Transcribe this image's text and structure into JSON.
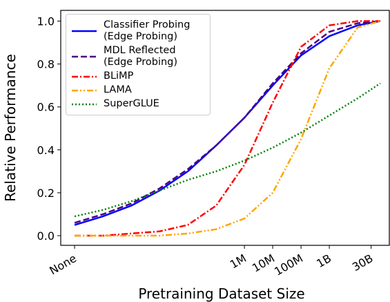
{
  "chart_data": {
    "type": "line",
    "xlabel": "Pretraining Dataset Size",
    "ylabel": "Relative Performance",
    "x": [
      0,
      1,
      2,
      3,
      4,
      5,
      6,
      7,
      8,
      9,
      10,
      10.8
    ],
    "xlim": [
      -0.49,
      11.12
    ],
    "xticks": [
      {
        "value": 0,
        "label": "None"
      },
      {
        "value": 6,
        "label": "1M"
      },
      {
        "value": 7,
        "label": "10M"
      },
      {
        "value": 8,
        "label": "100M"
      },
      {
        "value": 9,
        "label": "1B"
      },
      {
        "value": 10.477,
        "label": "30B"
      }
    ],
    "ylim": [
      -0.045,
      1.05
    ],
    "yticks": [
      {
        "value": 0,
        "label": "0.0"
      },
      {
        "value": 0.2,
        "label": "0.2"
      },
      {
        "value": 0.4,
        "label": "0.4"
      },
      {
        "value": 0.6,
        "label": "0.6"
      },
      {
        "value": 0.8,
        "label": "0.8"
      },
      {
        "value": 1,
        "label": "1.0"
      }
    ],
    "legend": "upper left",
    "series": [
      {
        "name": "Classifier Probing\n(Edge Probing)",
        "color": "#0000ff",
        "linestyle": "solid",
        "values": [
          0.05,
          0.09,
          0.14,
          0.21,
          0.3,
          0.42,
          0.55,
          0.7,
          0.84,
          0.93,
          0.98,
          1.0
        ]
      },
      {
        "name": "MDL Reflected\n(Edge Probing)",
        "color": "#4b0082",
        "linestyle": "dashed",
        "values": [
          0.06,
          0.1,
          0.15,
          0.22,
          0.31,
          0.42,
          0.55,
          0.71,
          0.85,
          0.95,
          0.99,
          1.0
        ]
      },
      {
        "name": "BLiMP",
        "color": "#ff0000",
        "linestyle": "dashdot",
        "values": [
          0.0,
          0.0,
          0.01,
          0.02,
          0.05,
          0.14,
          0.33,
          0.62,
          0.88,
          0.98,
          1.0,
          1.0
        ]
      },
      {
        "name": "LAMA",
        "color": "#ffa500",
        "linestyle": "dashdotdot",
        "values": [
          0.0,
          0.0,
          0.0,
          0.0,
          0.01,
          0.03,
          0.08,
          0.2,
          0.45,
          0.78,
          0.97,
          1.0
        ]
      },
      {
        "name": "SuperGLUE",
        "color": "#008000",
        "linestyle": "dotted",
        "values": [
          0.09,
          0.12,
          0.16,
          0.21,
          0.26,
          0.3,
          0.35,
          0.41,
          0.48,
          0.56,
          0.64,
          0.71
        ]
      }
    ]
  }
}
